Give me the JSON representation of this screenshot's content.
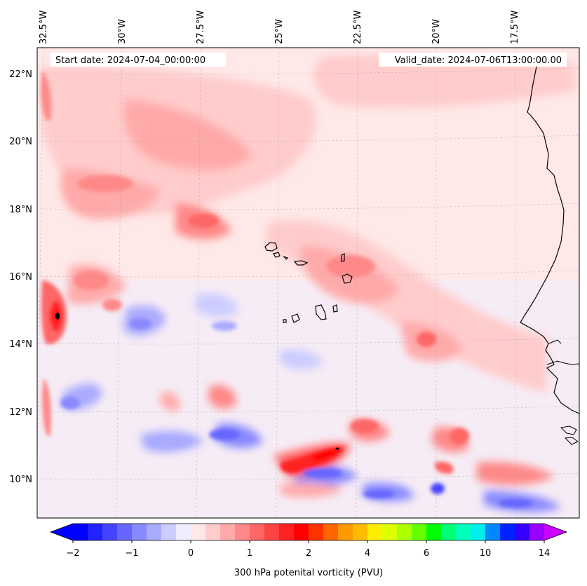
{
  "chart_data": {
    "type": "heatmap",
    "title": "",
    "start_date_label": "Start date: 2024-07-04_00:00:00",
    "valid_date_label": "Valid_date: 2024-07-06T13:00:00.00",
    "lon_ticks": [
      "32.5°W",
      "30°W",
      "27.5°W",
      "25°W",
      "22.5°W",
      "20°W",
      "17.5°W"
    ],
    "lon_values": [
      -32.5,
      -30,
      -27.5,
      -25,
      -22.5,
      -20,
      -17.5
    ],
    "lat_ticks": [
      "22°N",
      "20°N",
      "18°N",
      "16°N",
      "14°N",
      "12°N",
      "10°N"
    ],
    "lat_values": [
      22,
      20,
      18,
      16,
      14,
      12,
      10
    ],
    "xlim": [
      -32.5,
      -15.3
    ],
    "ylim": [
      8.9,
      22.8
    ],
    "colorbar": {
      "label": "300 hPa potenital vorticity (PVU)",
      "tick_labels": [
        "−2",
        "−1",
        "0",
        "1",
        "2",
        "4",
        "6",
        "10",
        "14"
      ],
      "extend": "both",
      "colors": [
        "#0000ff",
        "#2222ff",
        "#4444ff",
        "#6666ff",
        "#8888ff",
        "#aaaaff",
        "#ccccff",
        "#eeeeff",
        "#ffe8e8",
        "#ffcccc",
        "#ffaaaa",
        "#ff8888",
        "#ff6666",
        "#ff4444",
        "#ff2222",
        "#ff0000",
        "#ff3300",
        "#ff6600",
        "#ff9900",
        "#ffbb00",
        "#ffee00",
        "#ddff00",
        "#aaff00",
        "#66ff00",
        "#00ff00",
        "#00ff77",
        "#00ffbb",
        "#00eeee",
        "#0088ff",
        "#0022ff",
        "#3300ff",
        "#9900ff"
      ],
      "over_color": "#cc00ff",
      "under_color": "#0000ff"
    },
    "features": {
      "max_anomaly": {
        "lon": -32.3,
        "lat": 14.8,
        "value": 2
      },
      "coastline": "West Africa (Mauritania / Senegal)",
      "islands": "Cape Verde"
    }
  }
}
